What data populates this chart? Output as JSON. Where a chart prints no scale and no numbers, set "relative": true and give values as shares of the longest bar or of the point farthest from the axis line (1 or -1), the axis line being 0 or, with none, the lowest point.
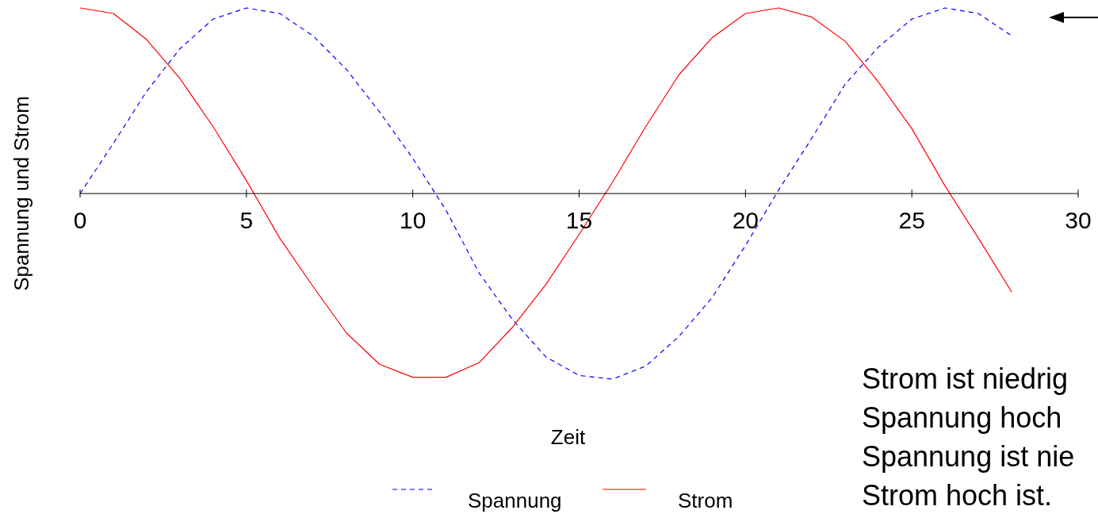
{
  "chart_data": {
    "type": "line",
    "relative": true,
    "xlabel": "Zeit",
    "ylabel": "Spannung und Strom",
    "x": [
      0,
      1,
      2,
      3,
      4,
      5,
      6,
      7,
      8,
      9,
      10,
      11,
      12,
      13,
      14,
      15,
      16,
      17,
      18,
      19,
      20,
      21,
      22,
      23,
      24,
      25,
      26,
      27,
      28
    ],
    "xlim": [
      0,
      30
    ],
    "xticks": [
      0,
      5,
      10,
      15,
      20,
      25,
      30
    ],
    "series": [
      {
        "name": "Spannung",
        "color": "#0000ff",
        "line_style": "dashed",
        "values": [
          0,
          0.27,
          0.55,
          0.78,
          0.94,
          1,
          0.97,
          0.85,
          0.67,
          0.44,
          0.19,
          -0.09,
          -0.43,
          -0.68,
          -0.88,
          -0.98,
          -1,
          -0.93,
          -0.77,
          -0.56,
          -0.28,
          0.02,
          0.3,
          0.59,
          0.79,
          0.94,
          1,
          0.97,
          0.85
        ]
      },
      {
        "name": "Strom",
        "color": "#ff0000",
        "line_style": "solid",
        "values": [
          1,
          0.97,
          0.83,
          0.62,
          0.36,
          0.07,
          -0.24,
          -0.5,
          -0.75,
          -0.92,
          -0.99,
          -0.99,
          -0.91,
          -0.72,
          -0.49,
          -0.22,
          0.06,
          0.36,
          0.64,
          0.84,
          0.97,
          1,
          0.95,
          0.82,
          0.6,
          0.35,
          0.04,
          -0.24,
          -0.53
        ]
      }
    ],
    "legend": "bottom",
    "annotations": [
      "Strom ist niedrig",
      "Spannung hoch",
      "Spannung ist nie",
      "Strom hoch ist."
    ]
  }
}
